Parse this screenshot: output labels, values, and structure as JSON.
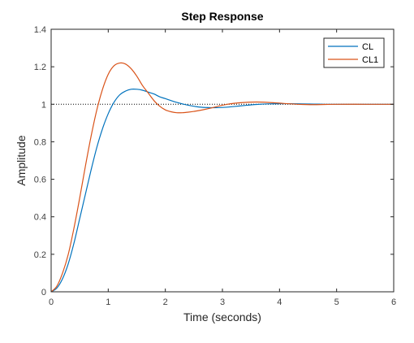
{
  "chart_data": {
    "type": "line",
    "title": "Step Response",
    "xlabel": "Time (seconds)",
    "ylabel": "Amplitude",
    "xlim": [
      0,
      6
    ],
    "ylim": [
      0,
      1.4
    ],
    "x_ticks": [
      0,
      1,
      2,
      3,
      4,
      5,
      6
    ],
    "y_ticks": [
      0,
      0.2,
      0.4,
      0.6,
      0.8,
      1,
      1.2,
      1.4
    ],
    "x_tick_labels": [
      "0",
      "1",
      "2",
      "3",
      "4",
      "5",
      "6"
    ],
    "y_tick_labels": [
      "0",
      "0.2",
      "0.4",
      "0.6",
      "0.8",
      "1",
      "1.2",
      "1.4"
    ],
    "grid": false,
    "legend_position": "top-right",
    "reference_line": {
      "y": 1,
      "style": "dotted",
      "color": "#000000"
    },
    "series": [
      {
        "name": "CL",
        "color": "#0072BD",
        "x": [
          0,
          0.1,
          0.2,
          0.3,
          0.4,
          0.5,
          0.6,
          0.7,
          0.8,
          0.9,
          1.0,
          1.1,
          1.2,
          1.3,
          1.4,
          1.5,
          1.6,
          1.7,
          1.8,
          1.9,
          2.0,
          2.2,
          2.4,
          2.6,
          2.8,
          3.0,
          3.2,
          3.4,
          3.6,
          3.8,
          4.0,
          4.2,
          4.4,
          4.6,
          4.8,
          5.0,
          5.5,
          6.0
        ],
        "y": [
          0,
          0.02,
          0.07,
          0.15,
          0.26,
          0.39,
          0.52,
          0.65,
          0.77,
          0.87,
          0.95,
          1.01,
          1.05,
          1.07,
          1.08,
          1.08,
          1.075,
          1.065,
          1.055,
          1.04,
          1.03,
          1.01,
          0.995,
          0.985,
          0.982,
          0.983,
          0.988,
          0.994,
          0.999,
          1.002,
          1.003,
          1.003,
          1.002,
          1.001,
          1.0,
          1.0,
          1.0,
          1.0
        ]
      },
      {
        "name": "CL1",
        "color": "#D95319",
        "x": [
          0,
          0.1,
          0.2,
          0.3,
          0.4,
          0.5,
          0.6,
          0.7,
          0.8,
          0.9,
          1.0,
          1.1,
          1.2,
          1.3,
          1.4,
          1.5,
          1.6,
          1.7,
          1.8,
          1.9,
          2.0,
          2.1,
          2.2,
          2.3,
          2.4,
          2.5,
          2.6,
          2.8,
          3.0,
          3.2,
          3.4,
          3.6,
          3.8,
          4.0,
          4.2,
          4.4,
          4.6,
          4.8,
          5.0,
          5.5,
          6.0
        ],
        "y": [
          0,
          0.03,
          0.1,
          0.2,
          0.34,
          0.5,
          0.67,
          0.83,
          0.97,
          1.08,
          1.16,
          1.205,
          1.22,
          1.215,
          1.19,
          1.15,
          1.1,
          1.06,
          1.02,
          0.99,
          0.97,
          0.96,
          0.955,
          0.955,
          0.958,
          0.962,
          0.967,
          0.98,
          0.995,
          1.005,
          1.01,
          1.012,
          1.01,
          1.006,
          1.002,
          0.999,
          0.998,
          0.999,
          1.0,
          1.0,
          1.0
        ]
      }
    ]
  }
}
